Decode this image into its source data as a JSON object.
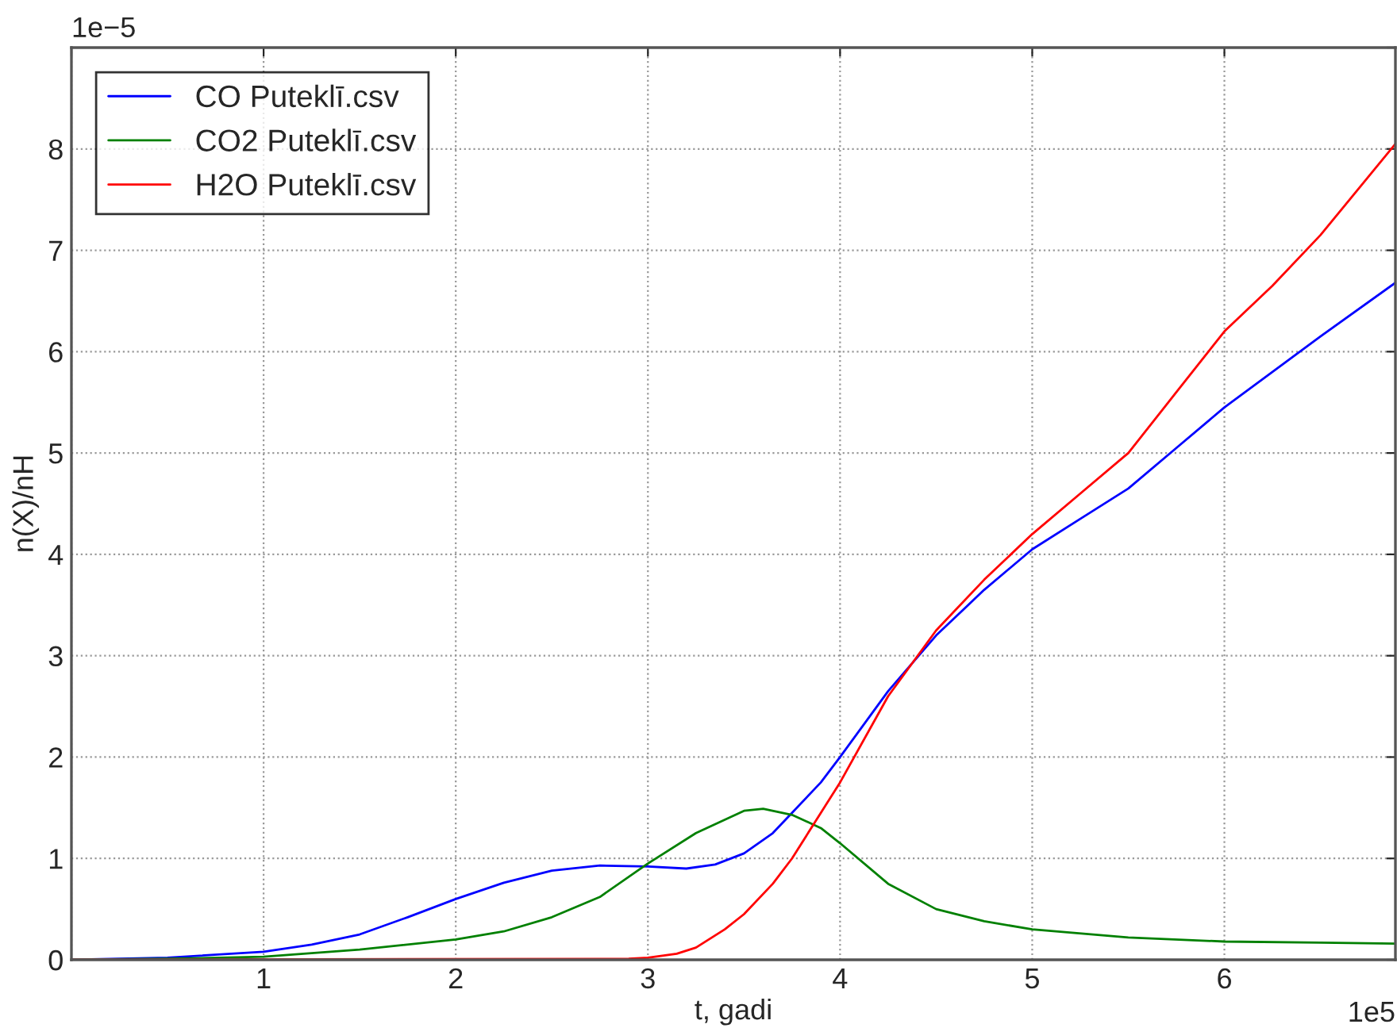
{
  "chart_data": {
    "type": "line",
    "xlabel": "t, gadi",
    "ylabel": "n(X)/nH",
    "annotations": [
      "1e−5",
      "1e5"
    ],
    "xlim": [
      0,
      6.89
    ],
    "ylim": [
      0,
      9
    ],
    "xticks": [
      {
        "value": 0,
        "label": null
      },
      1,
      2,
      3,
      4,
      5,
      6
    ],
    "yticks": [
      0,
      1,
      2,
      3,
      4,
      5,
      6,
      7,
      8,
      {
        "value": 9,
        "label": null
      }
    ],
    "grid": true,
    "legend": "top left",
    "line_style": "solid",
    "series": [
      {
        "name": "CO Puteklī.csv",
        "color": "#0000ff",
        "x": [
          0,
          0.5,
          1,
          1.25,
          1.5,
          1.75,
          2,
          2.25,
          2.5,
          2.75,
          3,
          3.2,
          3.35,
          3.5,
          3.65,
          3.75,
          3.9,
          4,
          4.25,
          4.5,
          4.75,
          5,
          5.25,
          5.5,
          5.75,
          6,
          6.25,
          6.5,
          6.89
        ],
        "values": [
          0,
          0.02,
          0.08,
          0.15,
          0.25,
          0.42,
          0.6,
          0.76,
          0.88,
          0.93,
          0.92,
          0.9,
          0.94,
          1.05,
          1.25,
          1.45,
          1.75,
          2.0,
          2.65,
          3.2,
          3.65,
          4.05,
          4.35,
          4.65,
          5.05,
          5.45,
          5.8,
          6.15,
          6.68
        ]
      },
      {
        "name": "CO2 Puteklī.csv",
        "color": "#008000",
        "x": [
          0,
          0.5,
          1,
          1.5,
          2,
          2.25,
          2.5,
          2.75,
          3,
          3.25,
          3.5,
          3.6,
          3.75,
          3.9,
          4,
          4.25,
          4.5,
          4.75,
          5,
          5.5,
          6,
          6.5,
          6.89
        ],
        "values": [
          0,
          0.01,
          0.03,
          0.1,
          0.2,
          0.28,
          0.42,
          0.62,
          0.95,
          1.25,
          1.47,
          1.49,
          1.43,
          1.3,
          1.15,
          0.75,
          0.5,
          0.38,
          0.3,
          0.22,
          0.18,
          0.17,
          0.16
        ]
      },
      {
        "name": "H2O Puteklī.csv",
        "color": "#ff0000",
        "x": [
          0,
          2.9,
          3,
          3.15,
          3.25,
          3.4,
          3.5,
          3.65,
          3.75,
          3.9,
          4,
          4.25,
          4.5,
          4.75,
          5,
          5.25,
          5.5,
          5.75,
          6,
          6.25,
          6.5,
          6.89
        ],
        "values": [
          0,
          0.01,
          0.02,
          0.06,
          0.12,
          0.3,
          0.45,
          0.75,
          1.0,
          1.45,
          1.75,
          2.6,
          3.25,
          3.75,
          4.2,
          4.6,
          5.0,
          5.6,
          6.2,
          6.65,
          7.15,
          8.05
        ]
      }
    ]
  }
}
